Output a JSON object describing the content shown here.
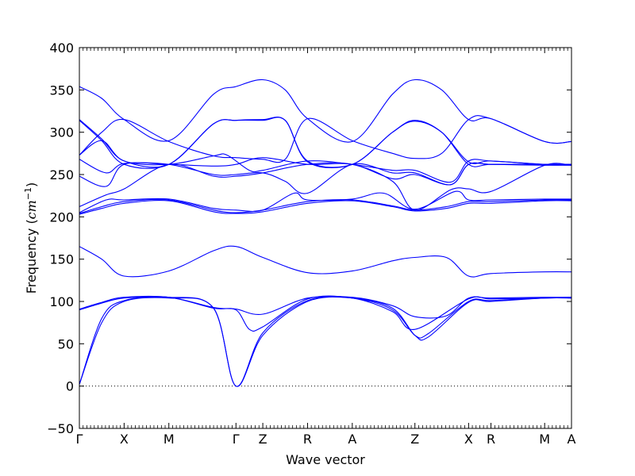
{
  "chart_data": {
    "type": "line",
    "xlabel": "Wave vector",
    "ylabel": "Frequency",
    "ylabel_unit_base": "cm",
    "ylabel_unit_exp": "−1",
    "ylim": [
      -50,
      400
    ],
    "yticks": [
      -50,
      0,
      50,
      100,
      150,
      200,
      250,
      300,
      350,
      400
    ],
    "xlim": [
      0,
      11
    ],
    "grid": false,
    "zero_line": {
      "y": 0,
      "style": "dotted"
    },
    "line_color": "#0000ff",
    "kpoints": [
      {
        "label": "Γ",
        "x": 0
      },
      {
        "label": "X",
        "x": 1
      },
      {
        "label": "M",
        "x": 2
      },
      {
        "label": "Γ",
        "x": 3.5
      },
      {
        "label": "Z",
        "x": 4.1
      },
      {
        "label": "R",
        "x": 5.1
      },
      {
        "label": "A",
        "x": 6.1
      },
      {
        "label": "Z",
        "x": 7.5
      },
      {
        "label": "X",
        "x": 8.7
      },
      {
        "label": "R",
        "x": 9.2
      },
      {
        "label": "M",
        "x": 10.4
      },
      {
        "label": "A",
        "x": 11
      }
    ],
    "series": [
      {
        "points": [
          [
            0,
            2
          ],
          [
            0.5,
            75
          ],
          [
            1,
            100
          ],
          [
            2,
            104
          ],
          [
            3,
            92
          ],
          [
            3.5,
            0
          ],
          [
            4.1,
            63
          ],
          [
            5.1,
            101
          ],
          [
            6.1,
            104
          ],
          [
            7,
            90
          ],
          [
            7.5,
            60
          ],
          [
            7.8,
            62
          ],
          [
            8.7,
            100
          ],
          [
            9.2,
            101
          ],
          [
            10.4,
            104
          ],
          [
            11,
            104
          ]
        ]
      },
      {
        "points": [
          [
            0,
            2
          ],
          [
            0.5,
            80
          ],
          [
            1,
            101
          ],
          [
            2,
            105
          ],
          [
            3,
            92
          ],
          [
            3.5,
            0
          ],
          [
            4.1,
            60
          ],
          [
            5.1,
            100
          ],
          [
            6.1,
            104
          ],
          [
            7,
            92
          ],
          [
            7.5,
            60
          ],
          [
            7.8,
            58
          ],
          [
            8.7,
            99
          ],
          [
            9.2,
            100
          ],
          [
            10.4,
            104
          ],
          [
            11,
            104
          ]
        ]
      },
      {
        "points": [
          [
            0,
            90
          ],
          [
            0.5,
            98
          ],
          [
            1,
            104
          ],
          [
            2,
            105
          ],
          [
            3,
            92
          ],
          [
            3.5,
            90
          ],
          [
            3.8,
            67
          ],
          [
            4.1,
            70
          ],
          [
            5.1,
            103
          ],
          [
            6.1,
            104
          ],
          [
            7,
            88
          ],
          [
            7.5,
            67
          ],
          [
            8.7,
            103
          ],
          [
            9.2,
            103
          ],
          [
            10.4,
            104
          ],
          [
            11,
            105
          ]
        ]
      },
      {
        "points": [
          [
            0,
            91
          ],
          [
            0.5,
            99
          ],
          [
            1,
            105
          ],
          [
            2,
            105
          ],
          [
            3,
            93
          ],
          [
            3.5,
            91
          ],
          [
            4.1,
            85
          ],
          [
            5.1,
            104
          ],
          [
            6.1,
            105
          ],
          [
            7,
            95
          ],
          [
            7.5,
            82
          ],
          [
            8.2,
            83
          ],
          [
            8.7,
            104
          ],
          [
            9.2,
            104
          ],
          [
            10.4,
            105
          ],
          [
            11,
            105
          ]
        ]
      },
      {
        "points": [
          [
            0,
            165
          ],
          [
            0.5,
            150
          ],
          [
            1,
            130
          ],
          [
            2,
            136
          ],
          [
            3,
            160
          ],
          [
            3.5,
            165
          ],
          [
            4.1,
            152
          ],
          [
            5.1,
            134
          ],
          [
            6.1,
            136
          ],
          [
            7,
            148
          ],
          [
            7.5,
            152
          ],
          [
            8.2,
            152
          ],
          [
            8.7,
            130
          ],
          [
            9.2,
            133
          ],
          [
            10.4,
            135
          ],
          [
            11,
            135
          ]
        ]
      },
      {
        "points": [
          [
            0,
            203
          ],
          [
            0.5,
            210
          ],
          [
            1,
            216
          ],
          [
            2,
            219
          ],
          [
            3,
            206
          ],
          [
            3.5,
            204
          ],
          [
            4.1,
            206
          ],
          [
            5.1,
            216
          ],
          [
            6.1,
            219
          ],
          [
            7,
            212
          ],
          [
            7.5,
            207
          ],
          [
            8.2,
            210
          ],
          [
            8.7,
            216
          ],
          [
            9.2,
            216
          ],
          [
            10.4,
            219
          ],
          [
            11,
            219
          ]
        ]
      },
      {
        "points": [
          [
            0,
            204
          ],
          [
            0.5,
            212
          ],
          [
            1,
            218
          ],
          [
            2,
            220
          ],
          [
            3,
            208
          ],
          [
            3.5,
            205
          ],
          [
            4.1,
            208
          ],
          [
            5.1,
            218
          ],
          [
            6.1,
            220
          ],
          [
            7,
            213
          ],
          [
            7.5,
            208
          ],
          [
            8.2,
            212
          ],
          [
            8.7,
            218
          ],
          [
            9.2,
            218
          ],
          [
            10.4,
            220
          ],
          [
            11,
            220
          ]
        ]
      },
      {
        "points": [
          [
            0,
            205
          ],
          [
            0.6,
            220
          ],
          [
            1,
            220
          ],
          [
            2,
            221
          ],
          [
            3,
            210
          ],
          [
            3.5,
            208
          ],
          [
            4.1,
            208
          ],
          [
            4.8,
            228
          ],
          [
            5.1,
            220
          ],
          [
            6.1,
            221
          ],
          [
            6.8,
            228
          ],
          [
            7.5,
            209
          ],
          [
            8.4,
            230
          ],
          [
            8.7,
            220
          ],
          [
            9.2,
            220
          ],
          [
            10.4,
            221
          ],
          [
            11,
            221
          ]
        ]
      },
      {
        "points": [
          [
            0,
            212
          ],
          [
            0.6,
            226
          ],
          [
            1,
            233
          ],
          [
            2,
            262
          ],
          [
            3,
            248
          ],
          [
            3.5,
            248
          ],
          [
            4.1,
            252
          ],
          [
            5.1,
            262
          ],
          [
            6.1,
            262
          ],
          [
            7,
            242
          ],
          [
            7.5,
            208
          ],
          [
            8.3,
            232
          ],
          [
            8.7,
            233
          ],
          [
            9.2,
            230
          ],
          [
            10.4,
            261
          ],
          [
            11,
            261
          ]
        ]
      },
      {
        "points": [
          [
            0,
            248
          ],
          [
            0.6,
            236
          ],
          [
            1,
            262
          ],
          [
            2,
            262
          ],
          [
            3,
            260
          ],
          [
            3.5,
            262
          ],
          [
            4.1,
            270
          ],
          [
            5.1,
            262
          ],
          [
            6.1,
            262
          ],
          [
            7,
            245
          ],
          [
            7.5,
            250
          ],
          [
            8.3,
            238
          ],
          [
            8.7,
            262
          ],
          [
            9.2,
            262
          ],
          [
            10.4,
            262
          ],
          [
            11,
            262
          ]
        ]
      },
      {
        "points": [
          [
            0,
            268
          ],
          [
            0.6,
            252
          ],
          [
            1,
            263
          ],
          [
            2,
            262
          ],
          [
            3,
            250
          ],
          [
            3.5,
            250
          ],
          [
            4.1,
            252
          ],
          [
            4.6,
            242
          ],
          [
            5.1,
            228
          ],
          [
            6.1,
            262
          ],
          [
            7,
            252
          ],
          [
            7.5,
            252
          ],
          [
            8.3,
            238
          ],
          [
            8.7,
            262
          ],
          [
            9.2,
            262
          ],
          [
            10.4,
            261
          ],
          [
            11,
            261
          ]
        ]
      },
      {
        "points": [
          [
            0,
            273
          ],
          [
            0.5,
            290
          ],
          [
            1,
            266
          ],
          [
            2,
            262
          ],
          [
            3,
            272
          ],
          [
            3.3,
            273
          ],
          [
            3.8,
            255
          ],
          [
            4.1,
            255
          ],
          [
            5.1,
            266
          ],
          [
            6.1,
            262
          ],
          [
            7,
            255
          ],
          [
            7.5,
            255
          ],
          [
            8.3,
            241
          ],
          [
            8.7,
            266
          ],
          [
            9.2,
            266
          ],
          [
            10.4,
            262
          ],
          [
            11,
            262
          ]
        ]
      },
      {
        "points": [
          [
            0,
            314
          ],
          [
            0.5,
            290
          ],
          [
            1,
            262
          ],
          [
            2,
            262
          ],
          [
            3,
            310
          ],
          [
            3.5,
            314
          ],
          [
            4.1,
            314
          ],
          [
            4.6,
            314
          ],
          [
            5.1,
            265
          ],
          [
            6.1,
            262
          ],
          [
            7,
            300
          ],
          [
            7.5,
            314
          ],
          [
            8.1,
            300
          ],
          [
            8.7,
            262
          ],
          [
            9.2,
            262
          ],
          [
            10.4,
            262
          ],
          [
            11,
            262
          ]
        ]
      },
      {
        "points": [
          [
            0,
            315
          ],
          [
            0.5,
            292
          ],
          [
            1,
            266
          ],
          [
            2,
            262
          ],
          [
            3,
            310
          ],
          [
            3.5,
            314
          ],
          [
            4.1,
            315
          ],
          [
            4.6,
            314
          ],
          [
            5.1,
            266
          ],
          [
            6.1,
            262
          ],
          [
            7,
            300
          ],
          [
            7.5,
            313
          ],
          [
            8.1,
            300
          ],
          [
            8.7,
            265
          ],
          [
            9.2,
            266
          ],
          [
            10.4,
            262
          ],
          [
            11,
            262
          ]
        ]
      },
      {
        "points": [
          [
            0,
            354
          ],
          [
            0.5,
            340
          ],
          [
            1,
            315
          ],
          [
            2,
            290
          ],
          [
            3,
            345
          ],
          [
            3.5,
            354
          ],
          [
            4.1,
            362
          ],
          [
            4.6,
            350
          ],
          [
            5.1,
            316
          ],
          [
            6.1,
            289
          ],
          [
            7,
            345
          ],
          [
            7.5,
            362
          ],
          [
            8.1,
            350
          ],
          [
            8.7,
            315
          ],
          [
            9.2,
            316
          ],
          [
            10.4,
            289
          ],
          [
            11,
            289
          ]
        ]
      },
      {
        "points": [
          [
            0,
            273
          ],
          [
            0.5,
            300
          ],
          [
            1,
            315
          ],
          [
            2,
            289
          ],
          [
            3,
            272
          ],
          [
            3.5,
            270
          ],
          [
            4.1,
            268
          ],
          [
            4.6,
            268
          ],
          [
            5.1,
            316
          ],
          [
            6.1,
            290
          ],
          [
            7,
            275
          ],
          [
            7.5,
            269
          ],
          [
            8.1,
            275
          ],
          [
            8.7,
            315
          ],
          [
            9.2,
            316
          ],
          [
            10.4,
            289
          ],
          [
            11,
            289
          ]
        ]
      }
    ]
  }
}
